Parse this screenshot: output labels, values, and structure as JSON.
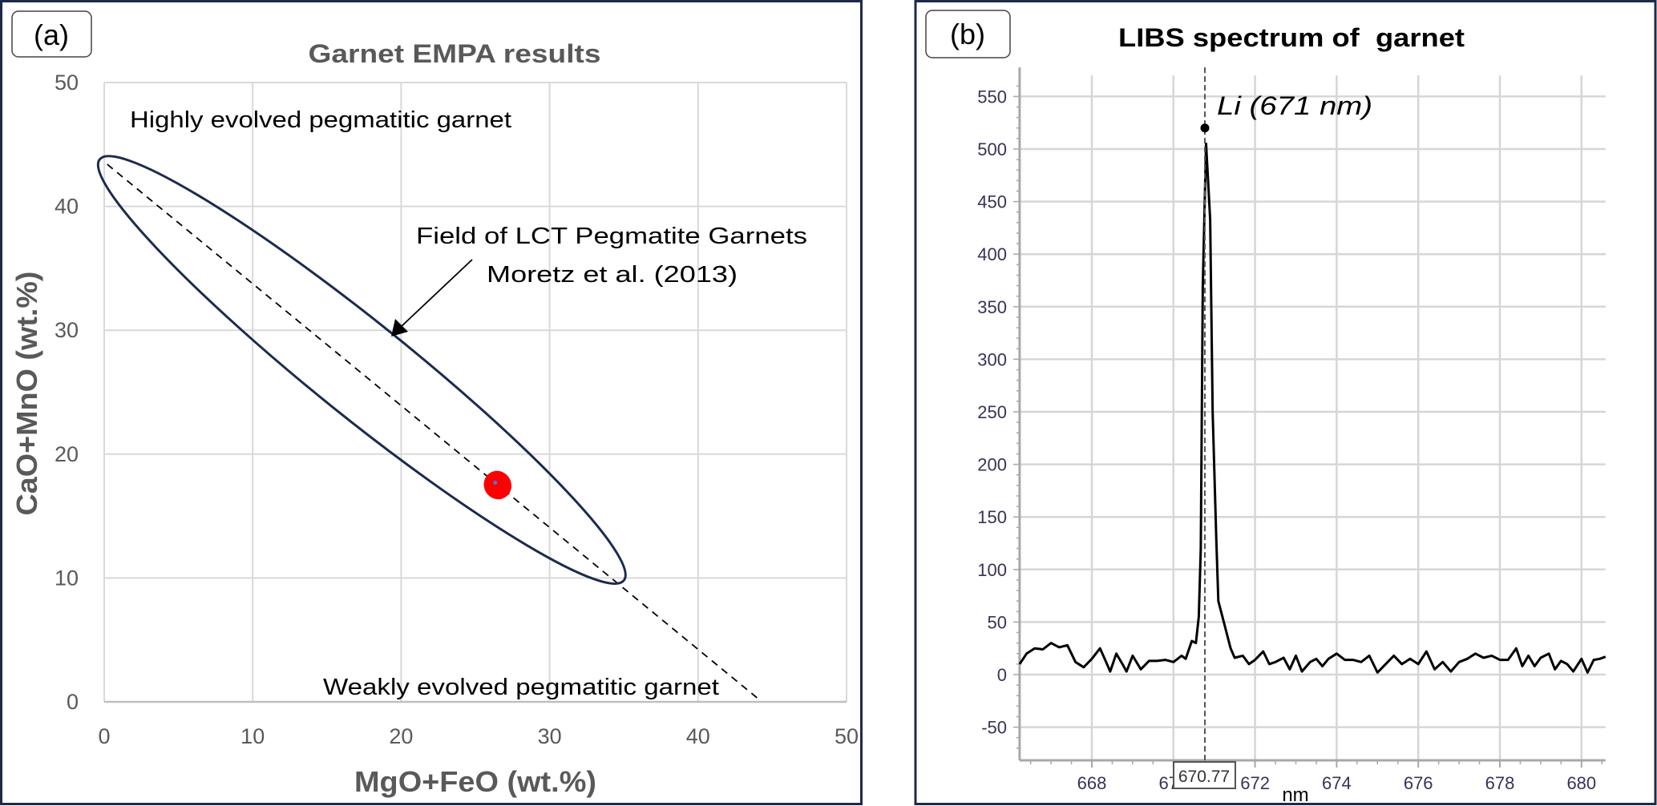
{
  "panel_labels": {
    "a": "(a)",
    "b": "(b)"
  },
  "colors": {
    "frame": "#1c2a4a",
    "field": "#1b2a4e",
    "sample": "#ff0000",
    "sample_center": "#4a7bd0",
    "spectrum": "#000000"
  },
  "chart_data": [
    {
      "type": "scatter",
      "title": "Garnet EMPA results",
      "xlabel": "MgO+FeO (wt.%)",
      "ylabel": "CaO+MnO (wt.%)",
      "xlim": [
        0,
        50
      ],
      "ylim": [
        0,
        50
      ],
      "xticks": [
        "0",
        "10",
        "20",
        "30",
        "40",
        "50"
      ],
      "yticks": [
        "0",
        "10",
        "20",
        "30",
        "40",
        "50"
      ],
      "grid": true,
      "field_endpoints": [
        [
          -0.3,
          43.8
        ],
        [
          35.0,
          9.8
        ]
      ],
      "trend_line": [
        [
          0.2,
          43.4
        ],
        [
          44.0,
          0.3
        ]
      ],
      "points": [
        {
          "x": 26.5,
          "y": 17.5
        }
      ],
      "annotations": {
        "top": "Highly evolved pegmatitic garnet",
        "field_line1": "Field of LCT Pegmatite Garnets",
        "field_line2": "Moretz et al. (2013)",
        "bottom": "Weakly evolved pegmatitic garnet"
      }
    },
    {
      "type": "line",
      "title": "LIBS spectrum of  garnet",
      "xlabel": "nm",
      "ylabel": "",
      "xlim": [
        666.23,
        680.59
      ],
      "ylim": [
        -80,
        570
      ],
      "xticks": [
        "668",
        "670",
        "672",
        "674",
        "676",
        "678",
        "680"
      ],
      "yticks": [
        "-50",
        "0",
        "50",
        "100",
        "150",
        "200",
        "250",
        "300",
        "350",
        "400",
        "450",
        "500",
        "550"
      ],
      "grid": true,
      "cursor_value": "670.77",
      "peak_label": "Li (671 nm)",
      "peak_marker": {
        "x": 670.77,
        "y": 520
      },
      "series": [
        {
          "name": "spectrum",
          "points": [
            [
              666.23,
              10
            ],
            [
              666.4,
              20
            ],
            [
              666.6,
              25
            ],
            [
              666.8,
              24
            ],
            [
              667.0,
              30
            ],
            [
              667.2,
              26
            ],
            [
              667.4,
              28
            ],
            [
              667.6,
              12
            ],
            [
              667.8,
              7
            ],
            [
              668.0,
              15
            ],
            [
              668.2,
              25
            ],
            [
              668.35,
              12
            ],
            [
              668.45,
              3
            ],
            [
              668.6,
              20
            ],
            [
              668.75,
              10
            ],
            [
              668.85,
              3
            ],
            [
              669.0,
              18
            ],
            [
              669.2,
              5
            ],
            [
              669.4,
              13
            ],
            [
              669.6,
              13
            ],
            [
              669.8,
              14
            ],
            [
              670.0,
              12
            ],
            [
              670.2,
              18
            ],
            [
              670.3,
              15
            ],
            [
              670.45,
              32
            ],
            [
              670.55,
              30
            ],
            [
              670.62,
              55
            ],
            [
              670.67,
              120
            ],
            [
              670.72,
              370
            ],
            [
              670.8,
              505
            ],
            [
              670.9,
              433
            ],
            [
              670.96,
              250
            ],
            [
              671.05,
              130
            ],
            [
              671.1,
              70
            ],
            [
              671.2,
              55
            ],
            [
              671.4,
              25
            ],
            [
              671.5,
              16
            ],
            [
              671.7,
              18
            ],
            [
              671.85,
              10
            ],
            [
              672.0,
              14
            ],
            [
              672.2,
              22
            ],
            [
              672.35,
              10
            ],
            [
              672.5,
              12
            ],
            [
              672.7,
              16
            ],
            [
              672.85,
              5
            ],
            [
              673.0,
              18
            ],
            [
              673.15,
              3
            ],
            [
              673.35,
              12
            ],
            [
              673.5,
              15
            ],
            [
              673.65,
              8
            ],
            [
              673.8,
              15
            ],
            [
              674.0,
              20
            ],
            [
              674.2,
              14
            ],
            [
              674.4,
              14
            ],
            [
              674.6,
              12
            ],
            [
              674.8,
              18
            ],
            [
              675.0,
              2
            ],
            [
              675.2,
              10
            ],
            [
              675.4,
              18
            ],
            [
              675.6,
              10
            ],
            [
              675.8,
              15
            ],
            [
              676.0,
              10
            ],
            [
              676.2,
              22
            ],
            [
              676.4,
              5
            ],
            [
              676.6,
              12
            ],
            [
              676.8,
              3
            ],
            [
              677.0,
              12
            ],
            [
              677.2,
              15
            ],
            [
              677.4,
              20
            ],
            [
              677.6,
              16
            ],
            [
              677.8,
              18
            ],
            [
              678.0,
              14
            ],
            [
              678.2,
              14
            ],
            [
              678.4,
              25
            ],
            [
              678.55,
              8
            ],
            [
              678.7,
              18
            ],
            [
              678.85,
              8
            ],
            [
              679.0,
              16
            ],
            [
              679.2,
              20
            ],
            [
              679.35,
              5
            ],
            [
              679.5,
              13
            ],
            [
              679.65,
              10
            ],
            [
              679.8,
              3
            ],
            [
              680.0,
              15
            ],
            [
              680.15,
              2
            ],
            [
              680.3,
              14
            ],
            [
              680.45,
              15
            ],
            [
              680.59,
              17
            ]
          ]
        }
      ]
    }
  ]
}
